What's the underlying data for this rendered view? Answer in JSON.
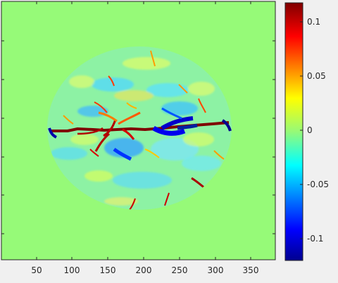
{
  "plot": {
    "background_color": "#96fa78",
    "x_tick_labels": [
      "50",
      "100",
      "150",
      "200",
      "250",
      "300",
      "350"
    ]
  },
  "colorbar": {
    "colormap": "jet",
    "tick_labels": [
      "0.1",
      "0.05",
      "0",
      "-0.05",
      "-0.1"
    ]
  },
  "chart_data": {
    "type": "heatmap",
    "title": "",
    "xlabel": "",
    "ylabel": "",
    "x_ticks": [
      50,
      100,
      150,
      200,
      250,
      300,
      350
    ],
    "xlim": [
      0,
      384
    ],
    "y_tick_labels": [],
    "colorbar_ticks": [
      0.1,
      0.05,
      0,
      -0.05,
      -0.1
    ],
    "colorbar_range": [
      -0.12,
      0.12
    ],
    "background_value": 0,
    "description_values": {
      "center_line_positive_peak": 0.12,
      "right_center_negative_peak": -0.12
    }
  }
}
